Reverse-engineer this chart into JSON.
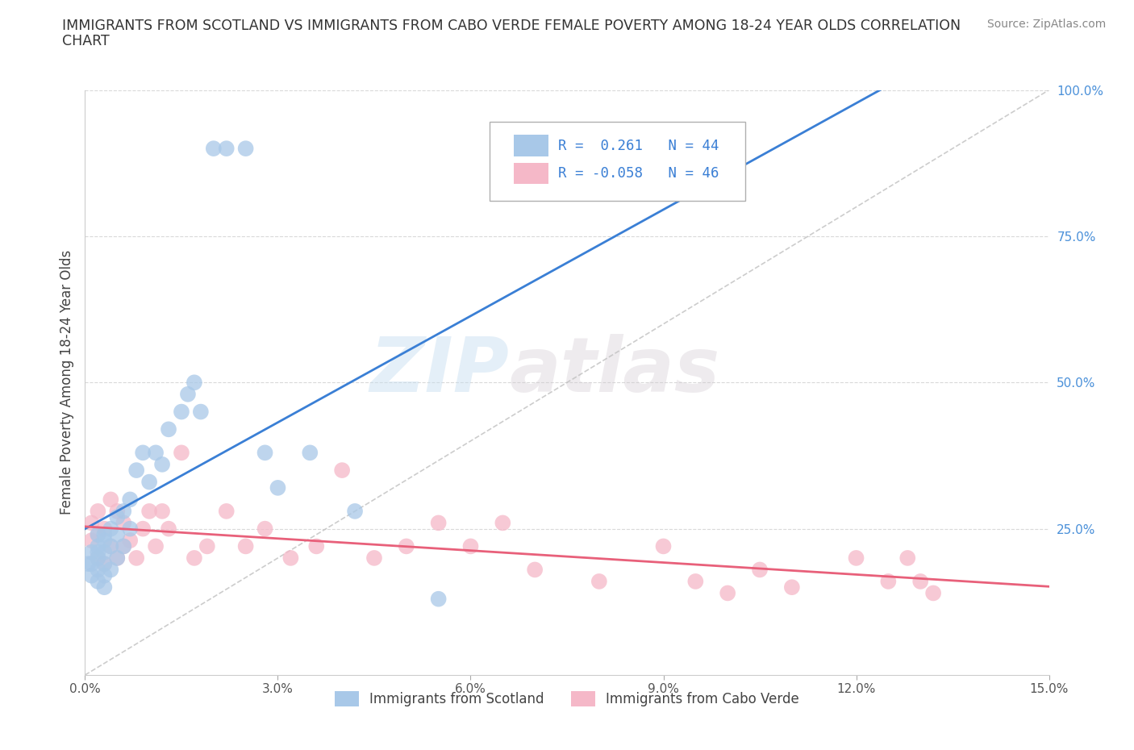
{
  "title_line1": "IMMIGRANTS FROM SCOTLAND VS IMMIGRANTS FROM CABO VERDE FEMALE POVERTY AMONG 18-24 YEAR OLDS CORRELATION",
  "title_line2": "CHART",
  "source": "Source: ZipAtlas.com",
  "ylabel": "Female Poverty Among 18-24 Year Olds",
  "xlim": [
    0.0,
    0.15
  ],
  "ylim": [
    0.0,
    1.0
  ],
  "xticks": [
    0.0,
    0.03,
    0.06,
    0.09,
    0.12,
    0.15
  ],
  "xticklabels": [
    "0.0%",
    "3.0%",
    "6.0%",
    "9.0%",
    "12.0%",
    "15.0%"
  ],
  "yticks_right": [
    0.25,
    0.5,
    0.75,
    1.0
  ],
  "ytick_right_labels": [
    "25.0%",
    "50.0%",
    "75.0%",
    "100.0%"
  ],
  "grid_color": "#d0d0d0",
  "background_color": "#ffffff",
  "scotland_color": "#a8c8e8",
  "cabo_verde_color": "#f5b8c8",
  "scotland_line_color": "#3a7fd5",
  "cabo_verde_line_color": "#e8607a",
  "diag_line_color": "#c0c0c0",
  "R_scotland": 0.261,
  "N_scotland": 44,
  "R_cabo_verde": -0.058,
  "N_cabo_verde": 46,
  "legend_label_scotland": "Immigrants from Scotland",
  "legend_label_cabo_verde": "Immigrants from Cabo Verde",
  "watermark_zip": "ZIP",
  "watermark_atlas": "atlas",
  "scotland_x": [
    0.0005,
    0.001,
    0.001,
    0.001,
    0.002,
    0.002,
    0.002,
    0.002,
    0.002,
    0.002,
    0.003,
    0.003,
    0.003,
    0.003,
    0.003,
    0.003,
    0.004,
    0.004,
    0.004,
    0.005,
    0.005,
    0.005,
    0.006,
    0.006,
    0.007,
    0.007,
    0.008,
    0.009,
    0.01,
    0.011,
    0.012,
    0.013,
    0.015,
    0.016,
    0.017,
    0.018,
    0.02,
    0.022,
    0.025,
    0.028,
    0.03,
    0.035,
    0.042,
    0.055
  ],
  "scotland_y": [
    0.19,
    0.17,
    0.19,
    0.21,
    0.16,
    0.18,
    0.2,
    0.21,
    0.22,
    0.24,
    0.15,
    0.17,
    0.19,
    0.21,
    0.23,
    0.24,
    0.18,
    0.22,
    0.25,
    0.2,
    0.24,
    0.27,
    0.22,
    0.28,
    0.25,
    0.3,
    0.35,
    0.38,
    0.33,
    0.38,
    0.36,
    0.42,
    0.45,
    0.48,
    0.5,
    0.45,
    0.9,
    0.9,
    0.9,
    0.38,
    0.32,
    0.38,
    0.28,
    0.13
  ],
  "cabo_verde_x": [
    0.001,
    0.001,
    0.002,
    0.002,
    0.002,
    0.003,
    0.003,
    0.004,
    0.004,
    0.005,
    0.005,
    0.006,
    0.006,
    0.007,
    0.008,
    0.009,
    0.01,
    0.011,
    0.012,
    0.013,
    0.015,
    0.017,
    0.019,
    0.022,
    0.025,
    0.028,
    0.032,
    0.036,
    0.04,
    0.045,
    0.05,
    0.055,
    0.06,
    0.065,
    0.07,
    0.08,
    0.09,
    0.095,
    0.1,
    0.105,
    0.11,
    0.12,
    0.125,
    0.128,
    0.13,
    0.132
  ],
  "cabo_verde_y": [
    0.23,
    0.26,
    0.2,
    0.24,
    0.28,
    0.19,
    0.25,
    0.22,
    0.3,
    0.2,
    0.28,
    0.22,
    0.26,
    0.23,
    0.2,
    0.25,
    0.28,
    0.22,
    0.28,
    0.25,
    0.38,
    0.2,
    0.22,
    0.28,
    0.22,
    0.25,
    0.2,
    0.22,
    0.35,
    0.2,
    0.22,
    0.26,
    0.22,
    0.26,
    0.18,
    0.16,
    0.22,
    0.16,
    0.14,
    0.18,
    0.15,
    0.2,
    0.16,
    0.2,
    0.16,
    0.14
  ]
}
